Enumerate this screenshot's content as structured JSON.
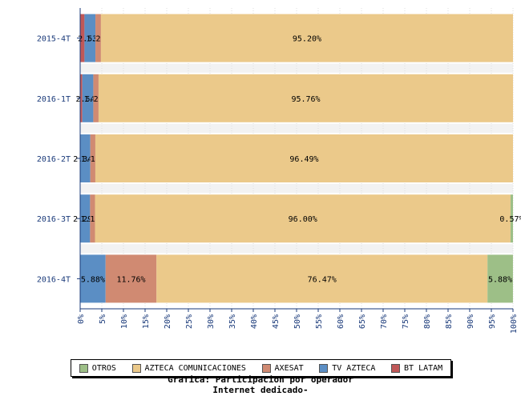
{
  "chart_data": {
    "type": "bar",
    "orientation": "horizontal",
    "stacked": true,
    "categories": [
      "2015-4T",
      "2016-1T",
      "2016-2T",
      "2016-3T",
      "2016-4T"
    ],
    "series": [
      {
        "name": "BT LATAM",
        "color": "#c05858",
        "values": [
          1.0,
          0.5,
          0,
          0,
          0
        ],
        "labels": [
          "",
          "",
          "",
          "",
          ""
        ]
      },
      {
        "name": "TV AZTECA",
        "color": "#5b8ec4",
        "values": [
          2.53,
          2.54,
          2.34,
          2.29,
          5.88
        ],
        "labels": [
          "2.53%",
          "2.54%",
          "2.34%",
          "2.29%",
          "5.88%"
        ]
      },
      {
        "name": "AXESAT",
        "color": "#d08a72",
        "values": [
          1.27,
          1.21,
          1.17,
          1.14,
          11.76
        ],
        "labels": [
          "1.27%",
          "1.21%",
          "1.17%",
          "1.14%",
          "11.76%"
        ]
      },
      {
        "name": "AZTECA COMUNICACIONES",
        "color": "#ebc98a",
        "values": [
          95.2,
          95.76,
          96.49,
          96.0,
          76.47
        ],
        "labels": [
          "95.20%",
          "95.76%",
          "96.49%",
          "96.00%",
          "76.47%"
        ]
      },
      {
        "name": "OTROS",
        "color": "#9dbf87",
        "values": [
          0,
          0,
          0,
          0.57,
          5.88
        ],
        "labels": [
          "",
          "",
          "",
          "0.57%",
          "5.88%"
        ]
      }
    ],
    "xlim": [
      0,
      100
    ],
    "xticks": [
      "0%",
      "5%",
      "10%",
      "15%",
      "20%",
      "25%",
      "30%",
      "35%",
      "40%",
      "45%",
      "50%",
      "55%",
      "60%",
      "65%",
      "70%",
      "75%",
      "80%",
      "85%",
      "90%",
      "95%",
      "100%"
    ],
    "grid": true,
    "legend_position": "bottom"
  },
  "legend": {
    "items": [
      {
        "label": "OTROS",
        "color": "#9dbf87"
      },
      {
        "label": "AZTECA COMUNICACIONES",
        "color": "#ebc98a"
      },
      {
        "label": "AXESAT",
        "color": "#d08a72"
      },
      {
        "label": "TV AZTECA",
        "color": "#5b8ec4"
      },
      {
        "label": "BT LATAM",
        "color": "#c05858"
      }
    ]
  },
  "caption": {
    "line1": "Grafica: Participacion por operador",
    "line2": "Internet dedicado-"
  }
}
